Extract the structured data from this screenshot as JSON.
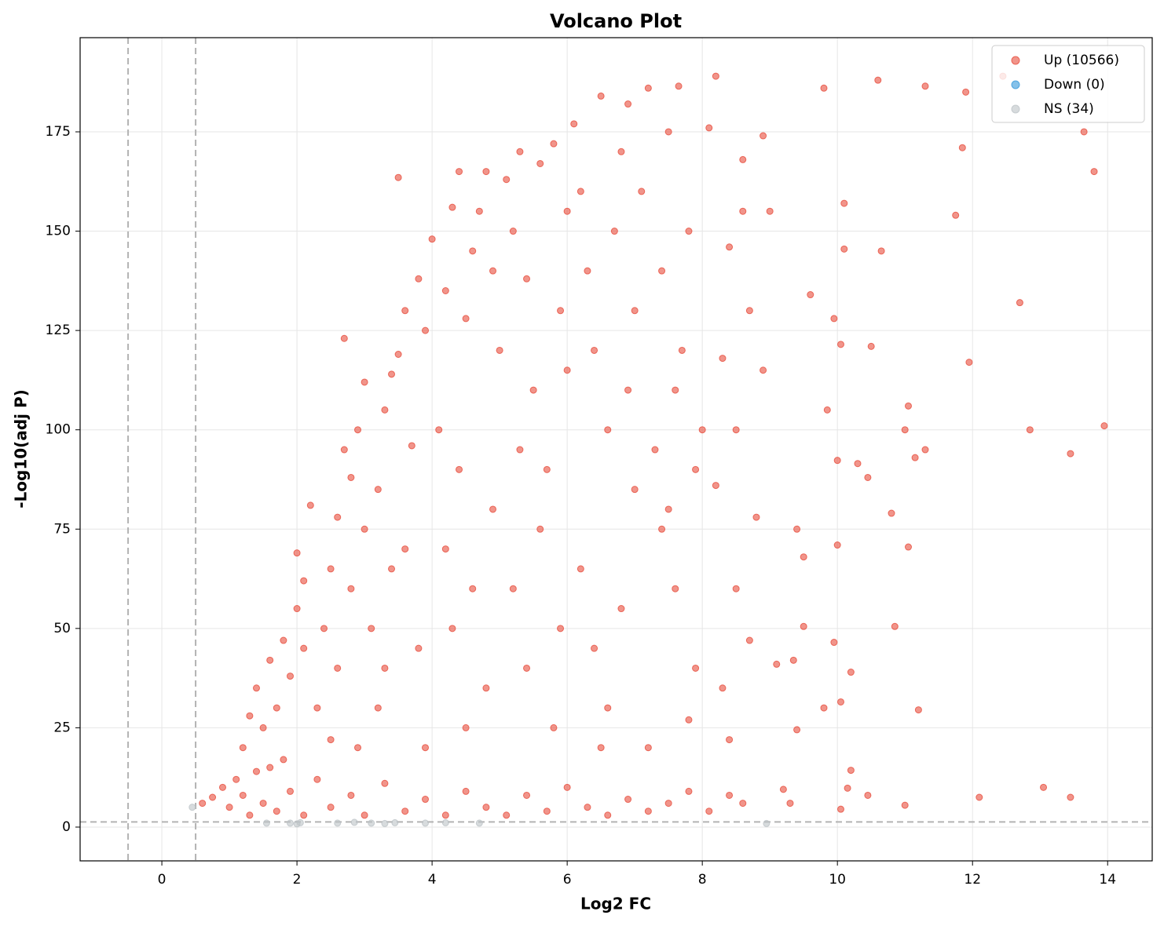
{
  "chart_data": {
    "type": "scatter",
    "title": "Volcano Plot",
    "x_label": "Log2 FC",
    "y_label": "-Log10(adj P)",
    "xlim": [
      -1.21,
      14.66
    ],
    "ylim": [
      -8.5,
      198.7
    ],
    "xticks": [
      0,
      2,
      4,
      6,
      8,
      10,
      12,
      14
    ],
    "yticks": [
      0,
      25,
      50,
      75,
      100,
      125,
      150,
      175
    ],
    "grid": true,
    "legend": "upper right",
    "vlines": [
      -0.5,
      0.5
    ],
    "hline": 1.3,
    "series": [
      {
        "name": "Up (10566)",
        "color": "#e74c3c",
        "x": [
          0.6,
          0.75,
          0.9,
          1.0,
          1.1,
          1.2,
          1.3,
          1.4,
          1.5,
          1.7,
          1.9,
          2.1,
          2.3,
          2.5,
          2.8,
          3.0,
          3.3,
          3.6,
          3.9,
          4.2,
          4.5,
          4.8,
          5.1,
          5.4,
          5.7,
          6.0,
          6.3,
          6.6,
          6.9,
          7.2,
          7.5,
          7.8,
          8.1,
          8.4,
          8.6,
          1.2,
          1.3,
          1.4,
          1.5,
          1.6,
          1.7,
          1.8,
          1.9,
          2.0,
          2.1,
          2.2,
          2.1,
          2.0,
          1.8,
          1.6,
          2.3,
          2.4,
          2.5,
          2.6,
          2.7,
          2.8,
          2.9,
          3.0,
          2.6,
          2.8,
          2.9,
          2.5,
          3.0,
          2.7,
          3.1,
          3.2,
          3.3,
          3.4,
          3.5,
          3.6,
          3.7,
          3.8,
          3.9,
          4.0,
          3.2,
          3.4,
          3.6,
          3.8,
          3.5,
          3.9,
          3.3,
          4.1,
          4.2,
          4.3,
          4.4,
          4.5,
          4.6,
          4.7,
          4.8,
          4.9,
          5.0,
          4.2,
          4.4,
          4.6,
          4.8,
          4.5,
          4.9,
          4.3,
          5.1,
          5.2,
          5.3,
          5.4,
          5.5,
          5.6,
          5.7,
          5.8,
          5.9,
          6.0,
          5.2,
          5.4,
          5.6,
          5.8,
          5.3,
          5.9,
          6.0,
          6.1,
          6.2,
          6.3,
          6.4,
          6.5,
          6.6,
          6.7,
          6.8,
          6.9,
          7.0,
          6.2,
          6.4,
          6.6,
          6.8,
          7.0,
          6.5,
          6.9,
          7.1,
          7.2,
          7.3,
          7.4,
          7.5,
          7.6,
          7.7,
          7.8,
          7.9,
          8.0,
          7.2,
          7.4,
          7.6,
          7.8,
          7.9,
          7.65,
          7.5,
          8.1,
          8.2,
          8.3,
          8.4,
          8.5,
          8.6,
          8.7,
          8.8,
          8.9,
          9.0,
          8.2,
          8.4,
          8.5,
          8.7,
          8.9,
          8.3,
          8.6,
          9.1,
          9.35,
          9.4,
          9.2,
          9.3,
          9.4,
          9.5,
          9.5,
          9.6,
          9.8,
          9.8,
          9.85,
          9.95,
          10.0,
          10.0,
          9.95,
          10.05,
          10.05,
          10.05,
          10.1,
          10.1,
          10.15,
          10.2,
          10.2,
          10.3,
          10.45,
          10.45,
          10.5,
          10.6,
          10.65,
          10.8,
          10.85,
          11.0,
          11.0,
          11.05,
          11.05,
          11.15,
          11.2,
          11.3,
          11.3,
          11.75,
          11.85,
          11.9,
          11.95,
          12.1,
          12.45,
          12.7,
          12.85,
          13.05,
          13.45,
          13.45,
          13.65,
          13.8,
          13.95
        ],
        "values": [
          6,
          7.5,
          10,
          5,
          12,
          8,
          3,
          14,
          6,
          4,
          9,
          3,
          12,
          5,
          8,
          3,
          11,
          4,
          7,
          3,
          9,
          5,
          3,
          8,
          4,
          10,
          5,
          3,
          7,
          4,
          6,
          9,
          4,
          8,
          6,
          20,
          28,
          35,
          25,
          42,
          30,
          47,
          38,
          55,
          62,
          81,
          45,
          69,
          17,
          15,
          30,
          50,
          65,
          78,
          95,
          88,
          100,
          112,
          40,
          60,
          20,
          22,
          75,
          123,
          50,
          85,
          105,
          114,
          119,
          130,
          96,
          138,
          125,
          148,
          30,
          65,
          70,
          45,
          163.5,
          20,
          40,
          100,
          135,
          156,
          165,
          128,
          145,
          155,
          165,
          140,
          120,
          70,
          90,
          60,
          35,
          25,
          80,
          50,
          163,
          150,
          170,
          138,
          110,
          167,
          90,
          172,
          130,
          155,
          60,
          40,
          75,
          25,
          95,
          50,
          115,
          177,
          160,
          140,
          120,
          184,
          100,
          150,
          170,
          182,
          85,
          65,
          45,
          30,
          55,
          130,
          20,
          110,
          160,
          186,
          95,
          140,
          175,
          60,
          120,
          150,
          40,
          100,
          20,
          75,
          110,
          27,
          90,
          186.5,
          80,
          176,
          189,
          118,
          146,
          60,
          168,
          130,
          78,
          174,
          155,
          86,
          22,
          100,
          47,
          115,
          35,
          155,
          41,
          42,
          24.5,
          9.5,
          6,
          75,
          68,
          50.5,
          134,
          186,
          30,
          105,
          128,
          71,
          92.3,
          46.5,
          4.5,
          31.5,
          121.5,
          145.5,
          157,
          9.8,
          14.3,
          39,
          91.5,
          88,
          8,
          121,
          188,
          145,
          79,
          50.5,
          5.5,
          100,
          70.5,
          106,
          93,
          29.5,
          95,
          186.5,
          154,
          171,
          185,
          117,
          7.5,
          189,
          132,
          100,
          10,
          94,
          7.5,
          175,
          165,
          101
        ]
      },
      {
        "name": "Down (0)",
        "color": "#3498db",
        "x": [],
        "values": []
      },
      {
        "name": "NS (34)",
        "color": "#bdc3c7",
        "x": [
          0.45,
          1.55,
          1.9,
          2.0,
          2.05,
          2.6,
          2.85,
          3.1,
          3.3,
          3.45,
          3.9,
          4.2,
          4.7,
          8.95
        ],
        "values": [
          5,
          1,
          1,
          0.8,
          1.1,
          1,
          1.2,
          1,
          0.9,
          1.1,
          1,
          1.1,
          1,
          0.9
        ]
      }
    ]
  }
}
